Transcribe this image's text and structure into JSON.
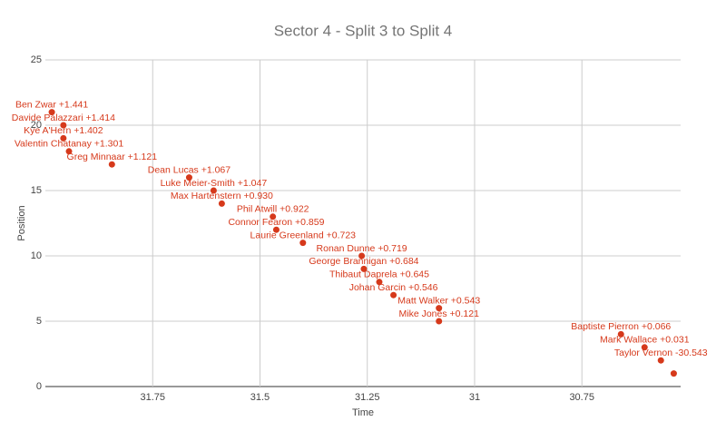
{
  "chart_data": {
    "type": "scatter",
    "title": "Sector 4 - Split 3 to Split 4",
    "x_label": "Time",
    "y_label": "Position",
    "color": "#d6391b",
    "x": [
      30.536,
      30.566,
      30.604,
      30.659,
      31.083,
      31.083,
      31.189,
      31.222,
      31.258,
      31.263,
      31.4,
      31.462,
      31.47,
      31.589,
      31.608,
      31.665,
      31.845,
      31.945,
      31.958,
      31.958,
      31.985
    ],
    "values": [
      1,
      2,
      3,
      4,
      5,
      6,
      7,
      8,
      9,
      10,
      11,
      12,
      13,
      14,
      15,
      16,
      17,
      18,
      19,
      20,
      21
    ],
    "point_labels": [
      null,
      "Taylor Vernon -30.543",
      "Mark Wallace +0.031",
      "Baptiste Pierron +0.066",
      "Mike Jones +0.121",
      "Matt Walker +0.543",
      "Johan Garcin +0.546",
      "Thibaut Daprela +0.645",
      "George Brannigan +0.684",
      "Ronan Dunne +0.719",
      "Laurie Greenland +0.723",
      "Connor Fearon +0.859",
      "Phil Atwill +0.922",
      "Max Hartenstern +0.930",
      "Luke Meier-Smith +1.047",
      "Dean Lucas +1.067",
      "Greg Minnaar +1.121",
      "Valentin Chatanay +1.301",
      "Kye A'Hern +1.402",
      "Davide Palazzari +1.414",
      "Ben Zwar +1.441"
    ],
    "xlim": [
      32,
      30.52
    ],
    "xticks": [
      31.75,
      31.5,
      31.25,
      31,
      30.75
    ],
    "ylim": [
      0,
      25
    ],
    "yticks": [
      0,
      5,
      10,
      15,
      20,
      25
    ],
    "grid": true
  }
}
